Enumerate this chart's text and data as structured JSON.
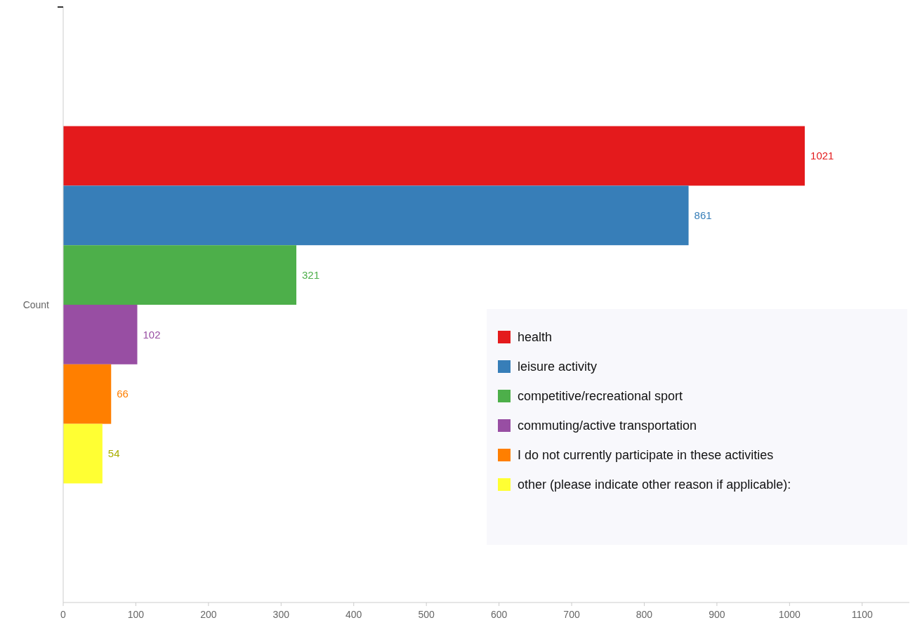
{
  "chart_data": {
    "type": "bar",
    "orientation": "horizontal",
    "categories": [
      "Count"
    ],
    "series": [
      {
        "name": "health",
        "color": "#e41a1c",
        "values": [
          1021
        ]
      },
      {
        "name": "leisure activity",
        "color": "#377eb8",
        "values": [
          861
        ]
      },
      {
        "name": "competitive/recreational sport",
        "color": "#4daf4a",
        "values": [
          321
        ]
      },
      {
        "name": "commuting/active transportation",
        "color": "#984ea3",
        "values": [
          102
        ]
      },
      {
        "name": "I do not currently participate in these activities",
        "color": "#ff7f00",
        "values": [
          66
        ]
      },
      {
        "name": "other (please indicate other reason if applicable):",
        "color": "#ffff33",
        "values": [
          54
        ]
      }
    ],
    "xlim": [
      0,
      1165
    ],
    "xticks": [
      0,
      100,
      200,
      300,
      400,
      500,
      600,
      700,
      800,
      900,
      1000,
      1100
    ],
    "data_labels": true,
    "legend": "right",
    "grid": false
  }
}
